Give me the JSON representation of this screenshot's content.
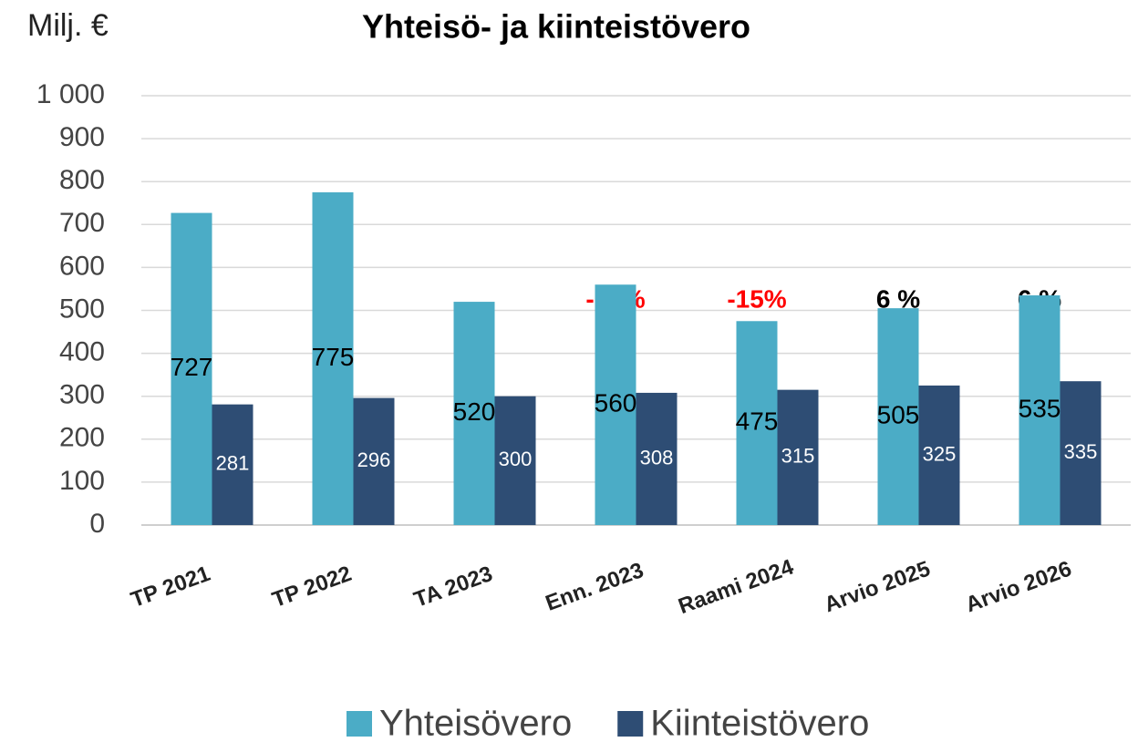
{
  "chart_data": {
    "type": "bar",
    "title": "Yhteisö- ja kiinteistövero",
    "y_label": "Milj. €",
    "categories": [
      "TP 2021",
      "TP 2022",
      "TA 2023",
      "Enn. 2023",
      "Raami 2024",
      "Arvio 2025",
      "Arvio 2026"
    ],
    "series": [
      {
        "name": "Yhteisövero",
        "color": "#4bacc6",
        "values": [
          727,
          775,
          520,
          560,
          475,
          505,
          535
        ]
      },
      {
        "name": "Kiinteistövero",
        "color": "#2e4d74",
        "values": [
          281,
          296,
          300,
          308,
          315,
          325,
          335
        ]
      }
    ],
    "annotations": [
      null,
      null,
      null,
      {
        "text": "-28%",
        "color": "#ff0000"
      },
      {
        "text": "-15%",
        "color": "#ff0000"
      },
      {
        "text": "6 %",
        "color": "#000000"
      },
      {
        "text": "6 %",
        "color": "#000000"
      }
    ],
    "ylim": [
      0,
      1000
    ],
    "yticks": [
      0,
      100,
      200,
      300,
      400,
      500,
      600,
      700,
      800,
      900,
      {
        "value": 1000,
        "label": "1 000"
      }
    ],
    "grid": true,
    "legend": "bottom"
  }
}
